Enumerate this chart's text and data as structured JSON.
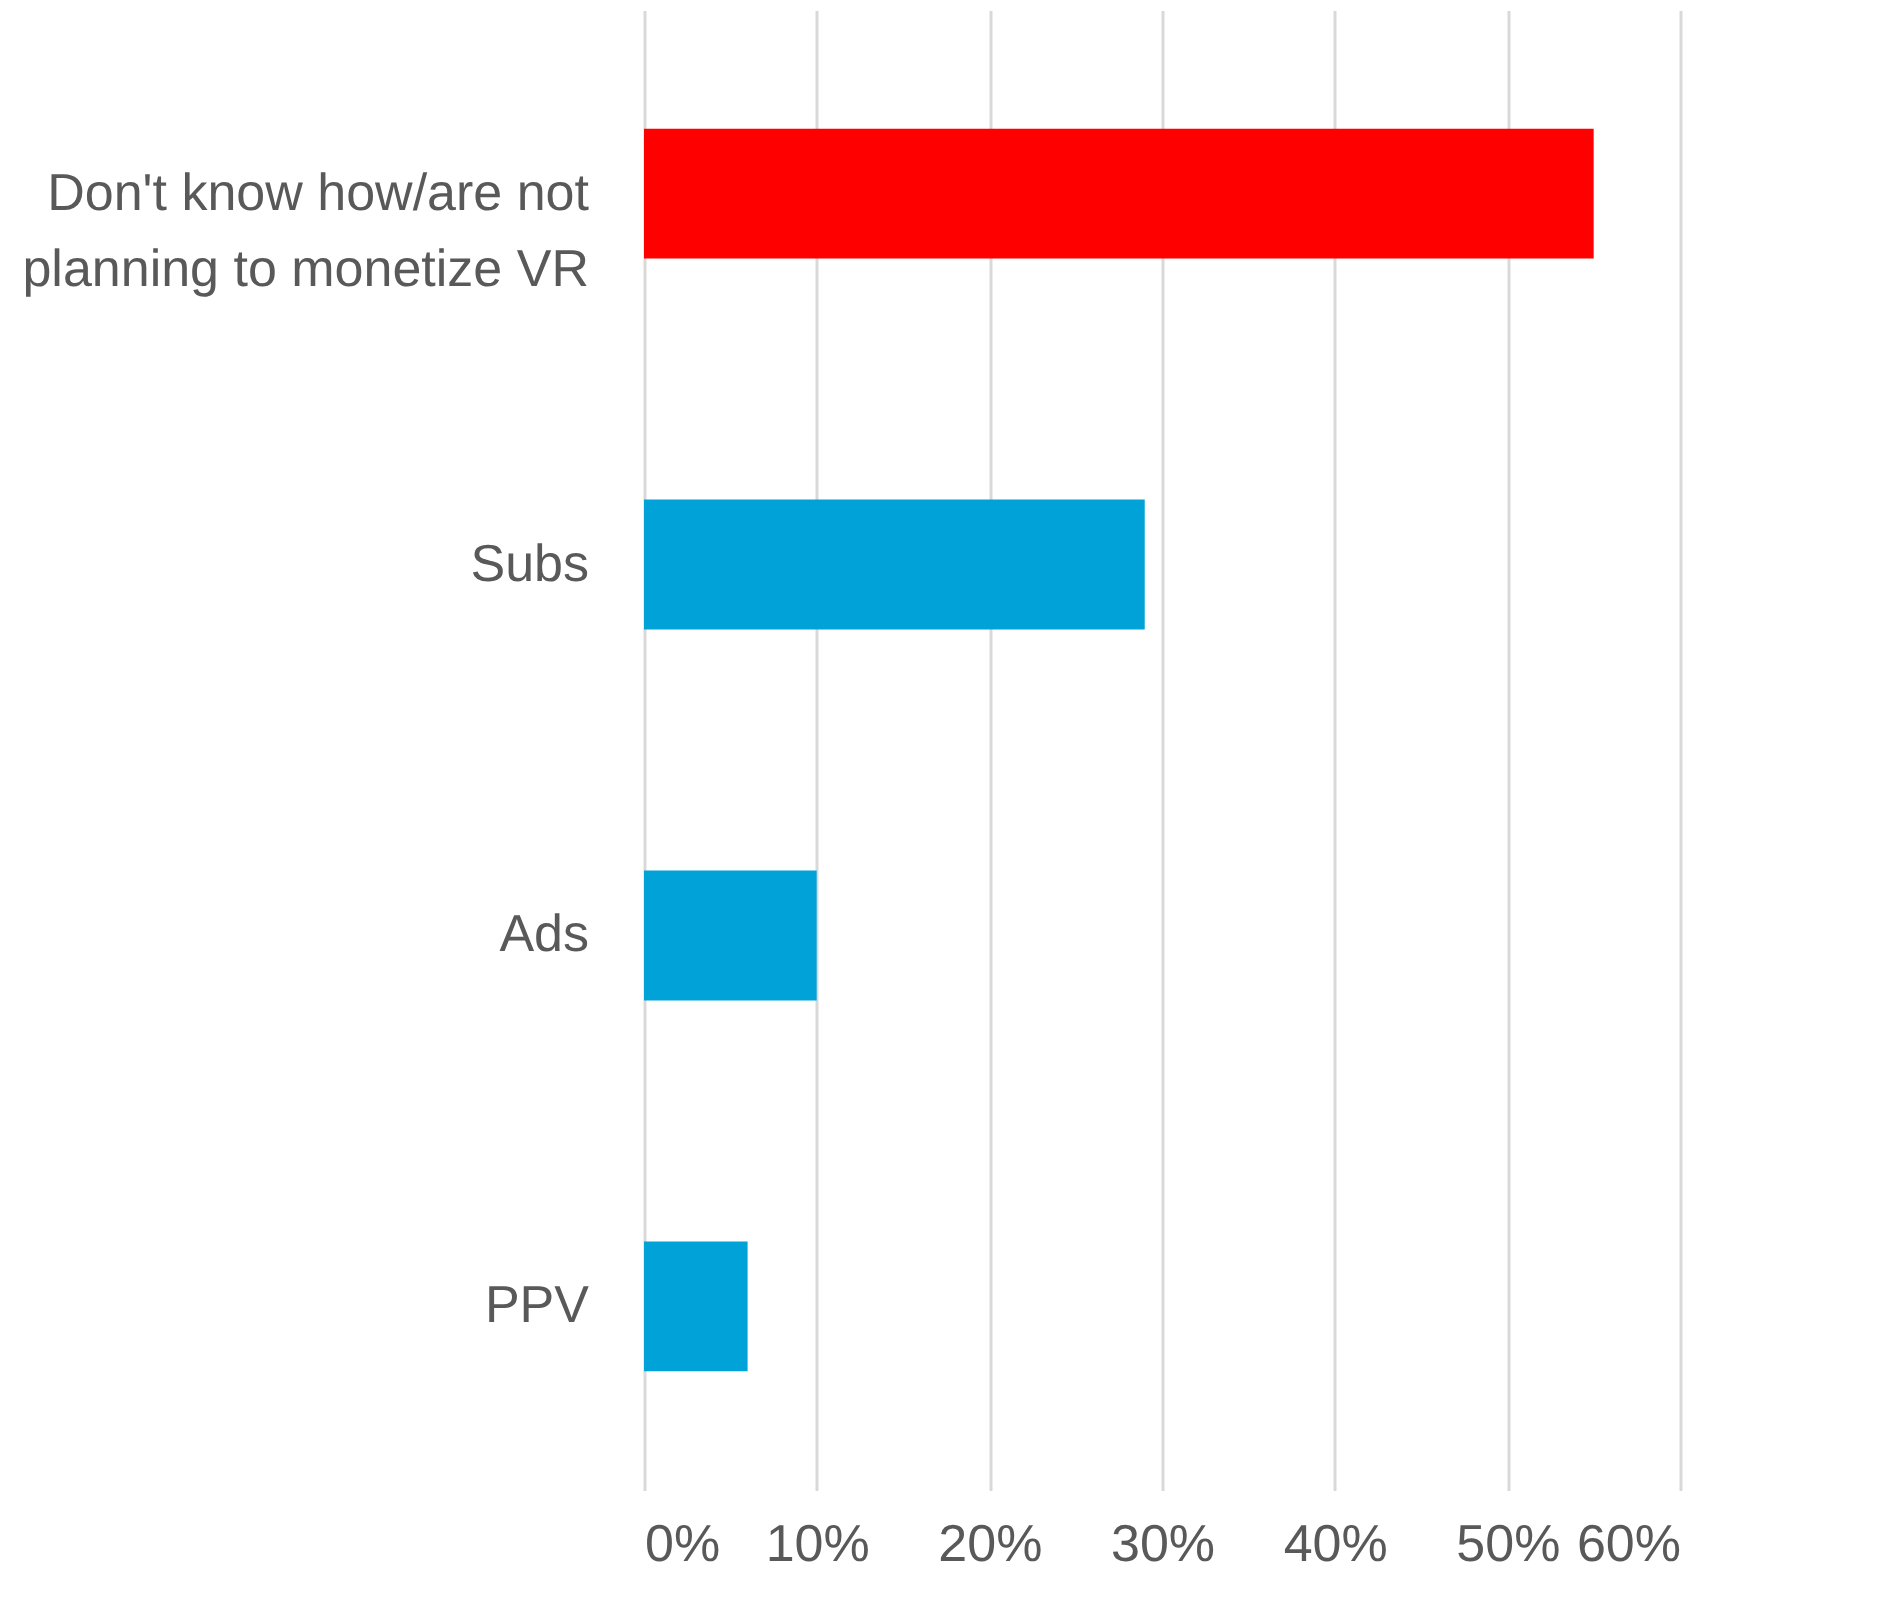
{
  "chart_data": {
    "type": "bar",
    "orientation": "horizontal",
    "categories": [
      "Don't know how/are not\nplanning to monetize VR",
      "Subs",
      "Ads",
      "PPV"
    ],
    "values": [
      55,
      29,
      10,
      6
    ],
    "colors": [
      "#ff0000",
      "#00a2d8",
      "#00a2d8",
      "#00a2d8"
    ],
    "xlim": [
      0,
      60
    ],
    "xticks": [
      {
        "value": 0,
        "label": "0%"
      },
      {
        "value": 10,
        "label": "10%"
      },
      {
        "value": 20,
        "label": "20%"
      },
      {
        "value": 30,
        "label": "30%"
      },
      {
        "value": 40,
        "label": "40%"
      },
      {
        "value": 50,
        "label": "50%"
      },
      {
        "value": 60,
        "label": "60%"
      }
    ],
    "grid": "x",
    "legend": false
  }
}
